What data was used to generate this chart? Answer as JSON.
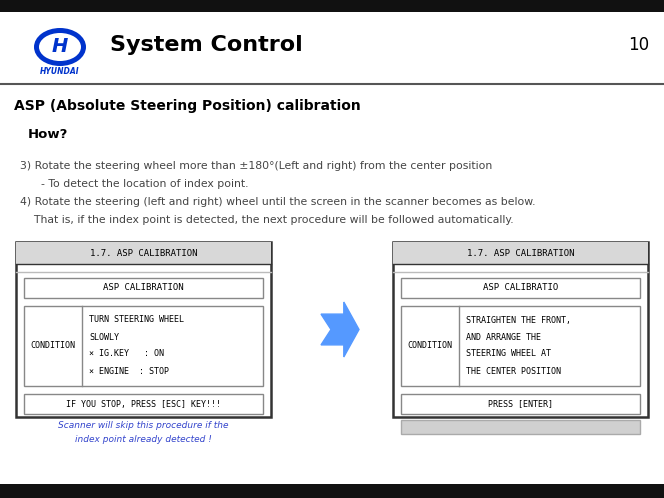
{
  "bg_color": "#ffffff",
  "top_bar_color": "#111111",
  "bottom_bar_color": "#111111",
  "title": "System Control",
  "page_num": "10",
  "section_title": "ASP (Absolute Steering Position) calibration",
  "how_label": "How?",
  "line3": "3) Rotate the steering wheel more than ±180°(Left and right) from the center position",
  "line3b": "      - To detect the location of index point.",
  "line4": "4) Rotate the steering (left and right) wheel until the screen in the scanner becomes as below.",
  "line4b": "    That is, if the index point is detected, the next procedure will be followed automatically.",
  "box1_title": "1.7. ASP CALIBRATION",
  "box1_sub": "ASP CALIBRATION",
  "box1_label": "CONDITION",
  "box1_cond1": "TURN STEERING WHEEL",
  "box1_cond2": "SLOWLY",
  "box1_cond3": "× IG.KEY   : ON",
  "box1_cond4": "× ENGINE  : STOP",
  "box1_footer": "IF YOU STOP, PRESS [ESC] KEY!!!",
  "box1_note1": "Scanner will skip this procedure if the",
  "box1_note2": "index point already detected !",
  "box2_title": "1.7. ASP CALIBRATION",
  "box2_sub": "ASP CALIBRATIO",
  "box2_label": "CONDITION",
  "box2_cond1": "STRAIGHTEN THE FRONT,",
  "box2_cond2": "AND ARRANGE THE",
  "box2_cond3": "STEERING WHEEL AT",
  "box2_cond4": "THE CENTER POSITION",
  "box2_footer": "PRESS [ENTER]",
  "arrow_color": "#5599ff",
  "note_color": "#3344cc",
  "mono_font": "monospace",
  "logo_color": "#0033cc",
  "divider_color": "#555555"
}
